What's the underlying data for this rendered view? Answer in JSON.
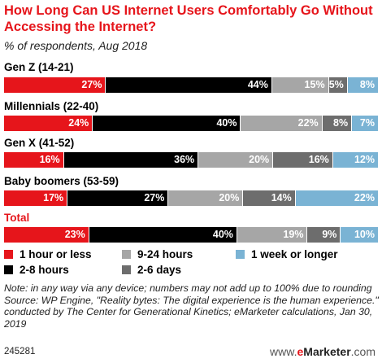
{
  "title": "How Long Can US Internet Users Comfortably Go Without Accessing the Internet?",
  "subtitle": "% of respondents, Aug 2018",
  "chart_data": {
    "type": "bar",
    "orientation": "horizontal",
    "stacked": true,
    "title": "How Long Can US Internet Users Comfortably Go Without Accessing the Internet?",
    "subtitle": "% of respondents, Aug 2018",
    "categories": [
      "Gen Z (14-21)",
      "Millennials (22-40)",
      "Gen X (41-52)",
      "Baby boomers (53-59)",
      "Total"
    ],
    "series": [
      {
        "name": "1 hour or less",
        "color": "#e6151b",
        "values": [
          27,
          24,
          16,
          17,
          23
        ]
      },
      {
        "name": "2-8 hours",
        "color": "#000000",
        "values": [
          44,
          40,
          36,
          27,
          40
        ]
      },
      {
        "name": "9-24 hours",
        "color": "#a6a6a6",
        "values": [
          15,
          22,
          20,
          20,
          19
        ]
      },
      {
        "name": "2-6 days",
        "color": "#6d6d6d",
        "values": [
          5,
          8,
          16,
          14,
          9
        ]
      },
      {
        "name": "1 week or longer",
        "color": "#7ab3d4",
        "values": [
          8,
          7,
          12,
          22,
          10
        ]
      }
    ],
    "value_suffix": "%",
    "legend_position": "bottom",
    "grid": false
  },
  "legend": [
    {
      "label": "1 hour or less",
      "color": "#e6151b"
    },
    {
      "label": "9-24 hours",
      "color": "#a6a6a6"
    },
    {
      "label": "1 week or longer",
      "color": "#7ab3d4"
    },
    {
      "label": "2-8 hours",
      "color": "#000000"
    },
    {
      "label": "2-6 days",
      "color": "#6d6d6d"
    }
  ],
  "note": "Note: in any way via any device; numbers may not add up to 100% due to rounding",
  "source": "Source: WP Engine, \"Reality bytes: The digital experience is the human experience.\" conducted by The Center for Generational Kinetics; eMarketer calculations, Jan 30, 2019",
  "footer": {
    "chart_id": "245281",
    "brand_prefix": "www.",
    "brand_e": "e",
    "brand_name": "Marketer",
    "brand_suffix": ".com"
  }
}
